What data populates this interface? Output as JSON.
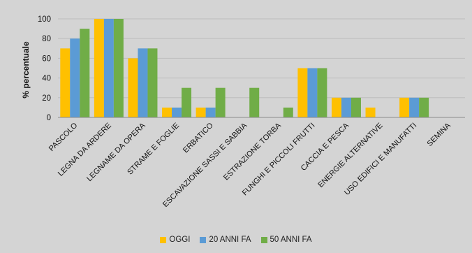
{
  "chart_data": {
    "type": "bar",
    "title": "",
    "xlabel": "",
    "ylabel": "% percentuale",
    "ylim": [
      0,
      100
    ],
    "yticks": [
      0,
      20,
      40,
      60,
      80,
      100
    ],
    "grid": true,
    "legend_position": "bottom",
    "categories": [
      "PASCOLO",
      "LEGNA DA ARDERE",
      "LEGNAME DA OPERA",
      "STRAME E FOGLIE",
      "ERBATICO",
      "ESCAVAZIONE SASSI E SABBIA",
      "ESTRAZIONE TORBA",
      "FUNGHI E PICCOLI FRUTTI",
      "CACCIA E PESCA",
      "ENERGIE ALTERNATIVE",
      "USO EDIFICI E MANUFATTI",
      "SEMINA"
    ],
    "series": [
      {
        "name": "OGGI",
        "color": "#ffc000",
        "values": [
          70,
          100,
          60,
          10,
          10,
          0,
          0,
          50,
          20,
          10,
          20,
          0
        ]
      },
      {
        "name": "20 ANNI FA",
        "color": "#5b9bd5",
        "values": [
          80,
          100,
          70,
          10,
          10,
          0,
          0,
          50,
          20,
          0,
          20,
          0
        ]
      },
      {
        "name": "50 ANNI FA",
        "color": "#70ad47",
        "values": [
          90,
          100,
          70,
          30,
          30,
          30,
          10,
          50,
          20,
          0,
          20,
          0
        ]
      }
    ]
  }
}
